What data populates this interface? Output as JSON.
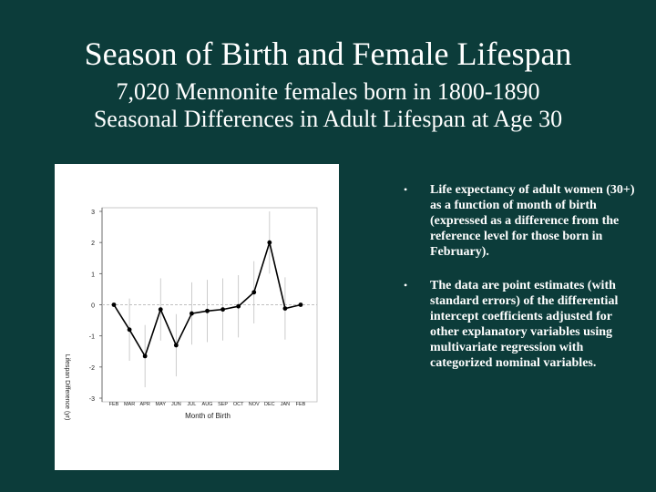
{
  "slide": {
    "title": "Season of Birth and Female Lifespan",
    "subtitle_line1": "7,020 Mennonite females born in 1800-1890",
    "subtitle_line2": "Seasonal Differences in Adult Lifespan at Age 30",
    "bullets": [
      " Life expectancy of adult women (30+) as a function of month of birth (expressed as a difference from the reference level for those born in February).",
      "The data are point  estimates (with standard errors) of the differential intercept coefficients adjusted for other explanatory variables using multivariate regression with categorized nominal variables."
    ],
    "bullet_symbol": "•"
  },
  "chart_data": {
    "type": "line",
    "categories": [
      "FEB",
      "MAR",
      "APR",
      "MAY",
      "JUN",
      "JUL",
      "AUG",
      "SEP",
      "OCT",
      "NOV",
      "DEC",
      "JAN",
      "FEB"
    ],
    "values": [
      0.0,
      -0.8,
      -1.65,
      -0.15,
      -1.3,
      -0.28,
      -0.2,
      -0.15,
      -0.05,
      0.4,
      2.0,
      -0.12,
      0.0
    ],
    "error_bars": [
      0,
      1.0,
      1.0,
      1.0,
      1.0,
      1.0,
      1.0,
      1.0,
      1.0,
      1.0,
      1.0,
      1.0,
      0
    ],
    "title": "",
    "xlabel": "Month of Birth",
    "ylabel": "Lifespan Difference (yr)",
    "ylim": [
      -3,
      3
    ],
    "yticks": [
      3,
      2,
      1,
      0,
      -1,
      -2,
      -3
    ],
    "reference_line": 0,
    "grid": false,
    "colors": {
      "line": "#000000",
      "error": "#c0c0c0",
      "reference": "#c0c0c0"
    }
  }
}
